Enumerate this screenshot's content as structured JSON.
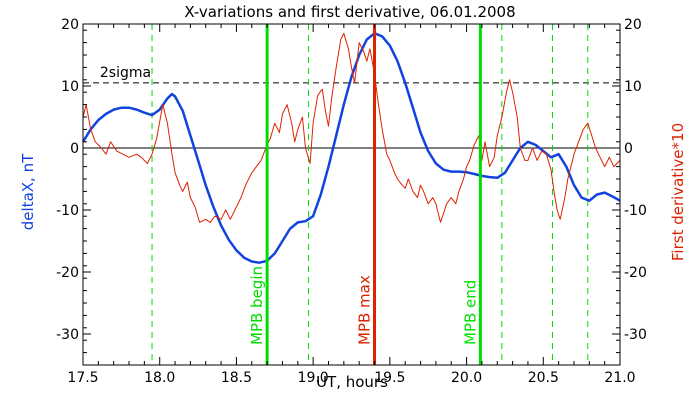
{
  "chart_data": {
    "type": "line",
    "title": "X-variations and first derivative, 06.01.2008",
    "xlabel": "UT, hours",
    "ylabel_left": "deltaX, nT",
    "ylabel_right": "First derivative*10",
    "xlim": [
      17.5,
      21.0
    ],
    "ylim": [
      -35,
      20
    ],
    "x_ticks": [
      "17.5",
      "18.0",
      "18.5",
      "19.0",
      "19.5",
      "20.0",
      "20.5",
      "21.0"
    ],
    "y_ticks": [
      "20",
      "10",
      "0",
      "-10",
      "-20",
      "-30"
    ],
    "threshold": {
      "label": "2sigma",
      "value": 10.5
    },
    "markers": [
      {
        "x": 18.7,
        "label": "MPB begin",
        "color": "#00dd00"
      },
      {
        "x": 19.4,
        "label": "MPB max",
        "color": "#dd2200"
      },
      {
        "x": 20.09,
        "label": "MPB end",
        "color": "#00dd00"
      }
    ],
    "dashed_markers": [
      17.95,
      18.97,
      20.23,
      20.56,
      20.79
    ],
    "series": [
      {
        "axis": "left",
        "color": "#1144dd",
        "points": [
          [
            17.5,
            1.0
          ],
          [
            17.55,
            3.0
          ],
          [
            17.6,
            4.5
          ],
          [
            17.65,
            5.5
          ],
          [
            17.7,
            6.2
          ],
          [
            17.75,
            6.5
          ],
          [
            17.8,
            6.5
          ],
          [
            17.85,
            6.2
          ],
          [
            17.9,
            5.7
          ],
          [
            17.95,
            5.3
          ],
          [
            18.0,
            6.2
          ],
          [
            18.05,
            8.0
          ],
          [
            18.08,
            8.7
          ],
          [
            18.1,
            8.3
          ],
          [
            18.15,
            6.0
          ],
          [
            18.2,
            2.0
          ],
          [
            18.25,
            -2.0
          ],
          [
            18.3,
            -6.0
          ],
          [
            18.35,
            -9.5
          ],
          [
            18.4,
            -12.5
          ],
          [
            18.45,
            -14.8
          ],
          [
            18.5,
            -16.5
          ],
          [
            18.55,
            -17.7
          ],
          [
            18.6,
            -18.3
          ],
          [
            18.65,
            -18.5
          ],
          [
            18.7,
            -18.2
          ],
          [
            18.75,
            -17.0
          ],
          [
            18.8,
            -15.0
          ],
          [
            18.85,
            -13.0
          ],
          [
            18.9,
            -12.0
          ],
          [
            18.95,
            -11.8
          ],
          [
            19.0,
            -11.0
          ],
          [
            19.05,
            -7.5
          ],
          [
            19.1,
            -3.0
          ],
          [
            19.15,
            2.0
          ],
          [
            19.2,
            7.0
          ],
          [
            19.25,
            11.5
          ],
          [
            19.3,
            15.0
          ],
          [
            19.35,
            17.5
          ],
          [
            19.4,
            18.5
          ],
          [
            19.45,
            18.0
          ],
          [
            19.5,
            16.5
          ],
          [
            19.55,
            14.0
          ],
          [
            19.6,
            10.5
          ],
          [
            19.65,
            6.5
          ],
          [
            19.7,
            2.5
          ],
          [
            19.75,
            -0.5
          ],
          [
            19.8,
            -2.5
          ],
          [
            19.85,
            -3.5
          ],
          [
            19.9,
            -3.8
          ],
          [
            19.95,
            -3.8
          ],
          [
            20.0,
            -3.9
          ],
          [
            20.05,
            -4.2
          ],
          [
            20.1,
            -4.5
          ],
          [
            20.15,
            -4.7
          ],
          [
            20.2,
            -4.8
          ],
          [
            20.25,
            -4.0
          ],
          [
            20.3,
            -2.0
          ],
          [
            20.35,
            0.0
          ],
          [
            20.4,
            1.0
          ],
          [
            20.45,
            0.5
          ],
          [
            20.5,
            -0.5
          ],
          [
            20.55,
            -1.5
          ],
          [
            20.6,
            -1.0
          ],
          [
            20.65,
            -3.0
          ],
          [
            20.7,
            -6.0
          ],
          [
            20.75,
            -8.0
          ],
          [
            20.8,
            -8.5
          ],
          [
            20.85,
            -7.5
          ],
          [
            20.9,
            -7.2
          ],
          [
            20.95,
            -7.8
          ],
          [
            21.0,
            -8.5
          ]
        ]
      },
      {
        "axis": "left",
        "color": "#dd2200",
        "points": [
          [
            17.5,
            5.0
          ],
          [
            17.52,
            7.0
          ],
          [
            17.55,
            3.0
          ],
          [
            17.58,
            1.0
          ],
          [
            17.62,
            0.0
          ],
          [
            17.65,
            -1.0
          ],
          [
            17.68,
            1.0
          ],
          [
            17.72,
            -0.5
          ],
          [
            17.76,
            -1.0
          ],
          [
            17.8,
            -1.5
          ],
          [
            17.85,
            -1.0
          ],
          [
            17.88,
            -1.5
          ],
          [
            17.92,
            -2.5
          ],
          [
            17.95,
            -1.0
          ],
          [
            17.98,
            1.5
          ],
          [
            18.02,
            7.0
          ],
          [
            18.05,
            4.0
          ],
          [
            18.08,
            -1.0
          ],
          [
            18.1,
            -4.0
          ],
          [
            18.13,
            -6.0
          ],
          [
            18.15,
            -7.0
          ],
          [
            18.18,
            -5.5
          ],
          [
            18.2,
            -8.0
          ],
          [
            18.23,
            -9.5
          ],
          [
            18.26,
            -12.0
          ],
          [
            18.3,
            -11.5
          ],
          [
            18.33,
            -12.0
          ],
          [
            18.36,
            -11.0
          ],
          [
            18.4,
            -11.5
          ],
          [
            18.43,
            -10.0
          ],
          [
            18.46,
            -11.5
          ],
          [
            18.5,
            -9.5
          ],
          [
            18.53,
            -8.0
          ],
          [
            18.56,
            -6.0
          ],
          [
            18.6,
            -4.0
          ],
          [
            18.63,
            -3.0
          ],
          [
            18.66,
            -2.0
          ],
          [
            18.7,
            0.5
          ],
          [
            18.72,
            1.5
          ],
          [
            18.75,
            4.0
          ],
          [
            18.78,
            2.5
          ],
          [
            18.8,
            5.5
          ],
          [
            18.83,
            7.0
          ],
          [
            18.86,
            4.0
          ],
          [
            18.88,
            1.0
          ],
          [
            18.9,
            3.0
          ],
          [
            18.93,
            5.0
          ],
          [
            18.95,
            0.0
          ],
          [
            18.98,
            -2.5
          ],
          [
            19.0,
            4.0
          ],
          [
            19.03,
            8.5
          ],
          [
            19.06,
            9.5
          ],
          [
            19.08,
            6.0
          ],
          [
            19.1,
            3.5
          ],
          [
            19.12,
            8.0
          ],
          [
            19.15,
            13.0
          ],
          [
            19.18,
            17.5
          ],
          [
            19.2,
            18.5
          ],
          [
            19.23,
            16.0
          ],
          [
            19.25,
            13.0
          ],
          [
            19.27,
            10.5
          ],
          [
            19.3,
            17.0
          ],
          [
            19.33,
            15.5
          ],
          [
            19.35,
            14.0
          ],
          [
            19.37,
            16.0
          ],
          [
            19.4,
            12.0
          ],
          [
            19.42,
            8.0
          ],
          [
            19.45,
            3.0
          ],
          [
            19.48,
            -1.0
          ],
          [
            19.5,
            -2.0
          ],
          [
            19.53,
            -4.0
          ],
          [
            19.55,
            -5.0
          ],
          [
            19.58,
            -6.0
          ],
          [
            19.6,
            -6.5
          ],
          [
            19.62,
            -5.0
          ],
          [
            19.65,
            -7.0
          ],
          [
            19.68,
            -8.0
          ],
          [
            19.7,
            -6.0
          ],
          [
            19.72,
            -7.0
          ],
          [
            19.75,
            -9.0
          ],
          [
            19.78,
            -8.0
          ],
          [
            19.8,
            -9.0
          ],
          [
            19.83,
            -12.0
          ],
          [
            19.85,
            -10.5
          ],
          [
            19.87,
            -9.0
          ],
          [
            19.9,
            -8.0
          ],
          [
            19.93,
            -9.0
          ],
          [
            19.95,
            -7.0
          ],
          [
            19.98,
            -5.0
          ],
          [
            20.0,
            -3.0
          ],
          [
            20.02,
            -2.0
          ],
          [
            20.05,
            0.5
          ],
          [
            20.08,
            2.0
          ],
          [
            20.1,
            -2.0
          ],
          [
            20.12,
            1.0
          ],
          [
            20.15,
            -3.0
          ],
          [
            20.18,
            -1.5
          ],
          [
            20.2,
            2.0
          ],
          [
            20.23,
            5.0
          ],
          [
            20.26,
            9.0
          ],
          [
            20.28,
            11.0
          ],
          [
            20.3,
            9.0
          ],
          [
            20.33,
            5.0
          ],
          [
            20.35,
            0.0
          ],
          [
            20.38,
            -2.0
          ],
          [
            20.4,
            -2.0
          ],
          [
            20.43,
            0.0
          ],
          [
            20.46,
            -2.0
          ],
          [
            20.49,
            -0.5
          ],
          [
            20.52,
            -1.0
          ],
          [
            20.55,
            -3.5
          ],
          [
            20.57,
            -7.0
          ],
          [
            20.59,
            -10.0
          ],
          [
            20.61,
            -11.5
          ],
          [
            20.64,
            -8.0
          ],
          [
            20.66,
            -5.0
          ],
          [
            20.68,
            -3.0
          ],
          [
            20.7,
            -1.0
          ],
          [
            20.73,
            1.0
          ],
          [
            20.76,
            3.0
          ],
          [
            20.79,
            4.0
          ],
          [
            20.81,
            2.5
          ],
          [
            20.84,
            0.0
          ],
          [
            20.87,
            -1.5
          ],
          [
            20.9,
            -3.0
          ],
          [
            20.93,
            -1.5
          ],
          [
            20.96,
            -3.0
          ],
          [
            21.0,
            -2.0
          ]
        ]
      }
    ]
  }
}
